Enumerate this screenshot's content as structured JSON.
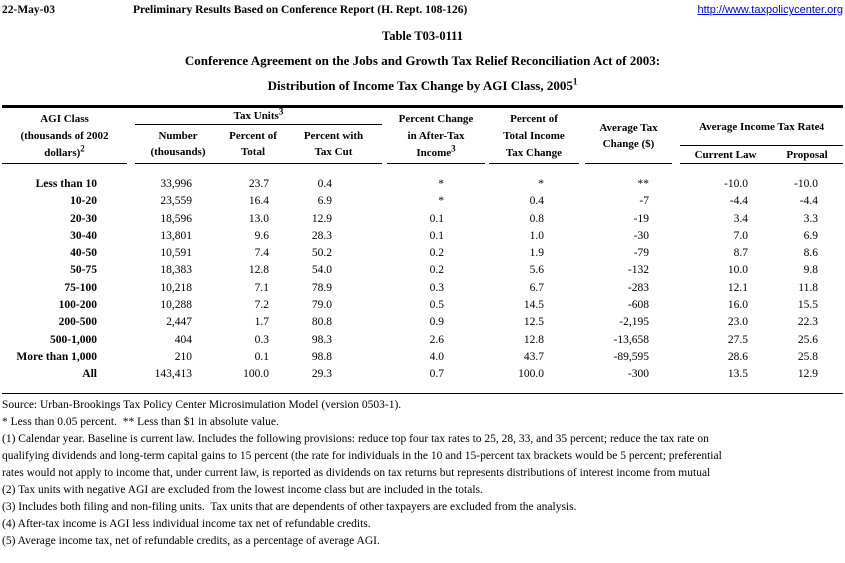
{
  "header": {
    "date": "22-May-03",
    "report_line": "Preliminary Results Based on Conference Report (H. Rept. 108-126)",
    "url": "http://www.taxpolicycenter.org",
    "link_color": "#0000dd"
  },
  "title": {
    "line1": "Table T03-0111",
    "line2": "Conference Agreement on the Jobs and Growth Tax Relief Reconciliation Act of 2003:",
    "line3": "Distribution of Income Tax Change by AGI Class, 2005",
    "line3_sup": "1"
  },
  "table": {
    "header": {
      "agi": {
        "l1": "AGI Class",
        "l2": "(thousands of 2002",
        "l3": "dollars)",
        "sup": "2"
      },
      "tax_units": {
        "label": "Tax Units",
        "sup": "3",
        "sub1a": "Number",
        "sub1b": "(thousands)",
        "sub2a": "Percent of",
        "sub2b": "Total",
        "sub3a": "Percent with",
        "sub3b": "Tax Cut"
      },
      "pct_change": {
        "l1": "Percent Change",
        "l2": "in After-Tax",
        "l3": "Income",
        "sup": "3"
      },
      "pct_total": {
        "l1": "Percent of",
        "l2": "Total Income",
        "l3": "Tax Change"
      },
      "avg_change": {
        "l1": "Average Tax",
        "l2": "Change ($)"
      },
      "avg_rate": {
        "label": "Average Income Tax Rate",
        "sup": "4",
        "sub1": "Current Law",
        "sub2": "Proposal"
      }
    },
    "rows": [
      [
        "Less than 10",
        "33,996",
        "23.7",
        "0.4",
        "*",
        "*",
        "**",
        "-10.0",
        "-10.0"
      ],
      [
        "10-20",
        "23,559",
        "16.4",
        "6.9",
        "*",
        "0.4",
        "-7",
        "-4.4",
        "-4.4"
      ],
      [
        "20-30",
        "18,596",
        "13.0",
        "12.9",
        "0.1",
        "0.8",
        "-19",
        "3.4",
        "3.3"
      ],
      [
        "30-40",
        "13,801",
        "9.6",
        "28.3",
        "0.1",
        "1.0",
        "-30",
        "7.0",
        "6.9"
      ],
      [
        "40-50",
        "10,591",
        "7.4",
        "50.2",
        "0.2",
        "1.9",
        "-79",
        "8.7",
        "8.6"
      ],
      [
        "50-75",
        "18,383",
        "12.8",
        "54.0",
        "0.2",
        "5.6",
        "-132",
        "10.0",
        "9.8"
      ],
      [
        "75-100",
        "10,218",
        "7.1",
        "78.9",
        "0.3",
        "6.7",
        "-283",
        "12.1",
        "11.8"
      ],
      [
        "100-200",
        "10,288",
        "7.2",
        "79.0",
        "0.5",
        "14.5",
        "-608",
        "16.0",
        "15.5"
      ],
      [
        "200-500",
        "2,447",
        "1.7",
        "80.8",
        "0.9",
        "12.5",
        "-2,195",
        "23.0",
        "22.3"
      ],
      [
        "500-1,000",
        "404",
        "0.3",
        "98.3",
        "2.6",
        "12.8",
        "-13,658",
        "27.5",
        "25.6"
      ],
      [
        "More than 1,000",
        "210",
        "0.1",
        "98.8",
        "4.0",
        "43.7",
        "-89,595",
        "28.6",
        "25.8"
      ],
      [
        "All",
        "143,413",
        "100.0",
        "29.3",
        "0.7",
        "100.0",
        "-300",
        "13.5",
        "12.9"
      ]
    ]
  },
  "notes": [
    "Source: Urban-Brookings Tax Policy Center Microsimulation Model (version 0503-1).",
    "* Less than 0.05 percent.  ** Less than $1 in absolute value.",
    "(1) Calendar year. Baseline is current law. Includes the following provisions: reduce top four tax rates to 25, 28, 33, and 35 percent; reduce the tax rate on",
    "qualifying dividends and long-term capital gains to 15 percent (the rate for individuals in the 10 and 15-percent tax brackets would be 5 percent; preferential",
    "rates would not apply to income that, under current law, is reported as dividends on tax returns but represents distributions of interest income from mutual",
    "(2) Tax units with negative AGI are excluded from the lowest income class but are included in the totals.",
    "(3) Includes both filing and non-filing units.  Tax units that are dependents of other taxpayers are excluded from the analysis.",
    "(4) After-tax income is AGI less individual income tax net of refundable credits.",
    "(5) Average income tax, net of refundable credits, as a percentage of average AGI."
  ]
}
